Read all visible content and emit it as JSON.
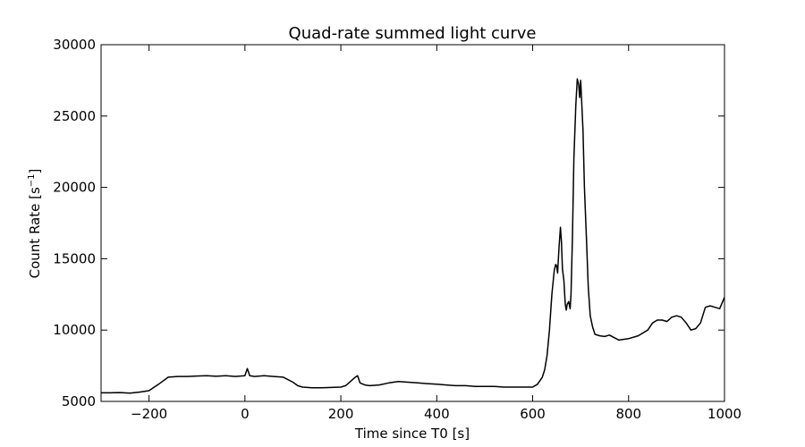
{
  "chart_data": {
    "type": "line",
    "title": "Quad-rate summed light curve",
    "xlabel": "Time since T0 [s]",
    "ylabel_text": "Count Rate [s",
    "ylabel_sup": "−1",
    "ylabel_close": "]",
    "xlim": [
      -300,
      1000
    ],
    "ylim": [
      5000,
      30000
    ],
    "xticks": [
      -200,
      0,
      200,
      400,
      600,
      800,
      1000
    ],
    "xtick_labels": [
      "−200",
      "0",
      "200",
      "400",
      "600",
      "800",
      "1000"
    ],
    "yticks": [
      5000,
      10000,
      15000,
      20000,
      25000,
      30000
    ],
    "ytick_labels": [
      "5000",
      "10000",
      "15000",
      "20000",
      "25000",
      "30000"
    ],
    "grid": false,
    "line_color": "#000000",
    "series": [
      {
        "x": [
          -300,
          -280,
          -260,
          -240,
          -220,
          -200,
          -180,
          -160,
          -140,
          -120,
          -100,
          -80,
          -60,
          -40,
          -20,
          0,
          5,
          10,
          20,
          40,
          60,
          80,
          100,
          110,
          120,
          140,
          160,
          180,
          200,
          210,
          220,
          230,
          235,
          240,
          250,
          260,
          280,
          300,
          320,
          340,
          360,
          380,
          400,
          420,
          440,
          460,
          480,
          500,
          520,
          540,
          560,
          580,
          600,
          610,
          620,
          625,
          630,
          635,
          640,
          645,
          648,
          650,
          652,
          655,
          658,
          660,
          662,
          665,
          668,
          670,
          672,
          675,
          678,
          680,
          683,
          686,
          690,
          693,
          696,
          698,
          700,
          702,
          705,
          708,
          712,
          716,
          720,
          725,
          730,
          740,
          750,
          760,
          780,
          800,
          820,
          840,
          850,
          860,
          870,
          880,
          890,
          900,
          910,
          920,
          930,
          940,
          950,
          960,
          970,
          980,
          990,
          1000
        ],
        "y": [
          5600,
          5600,
          5620,
          5580,
          5650,
          5750,
          6200,
          6700,
          6750,
          6750,
          6780,
          6800,
          6760,
          6800,
          6750,
          6800,
          7300,
          6800,
          6750,
          6800,
          6750,
          6700,
          6350,
          6100,
          6000,
          5950,
          5950,
          5980,
          6000,
          6100,
          6400,
          6700,
          6800,
          6300,
          6150,
          6100,
          6150,
          6300,
          6400,
          6350,
          6300,
          6250,
          6200,
          6150,
          6100,
          6100,
          6050,
          6050,
          6050,
          6000,
          6000,
          6000,
          6000,
          6200,
          6700,
          7200,
          8200,
          10000,
          12500,
          14200,
          14600,
          14500,
          14000,
          15800,
          17200,
          16200,
          14300,
          13500,
          11800,
          11400,
          11800,
          12000,
          11500,
          12500,
          16500,
          22000,
          25800,
          27600,
          27200,
          26300,
          27500,
          26200,
          24000,
          20000,
          16500,
          13000,
          11000,
          10200,
          9700,
          9600,
          9550,
          9650,
          9300,
          9400,
          9600,
          10000,
          10500,
          10700,
          10700,
          10600,
          10900,
          11000,
          10900,
          10500,
          10000,
          10100,
          10500,
          11600,
          11700,
          11600,
          11500,
          12300
        ]
      }
    ]
  }
}
